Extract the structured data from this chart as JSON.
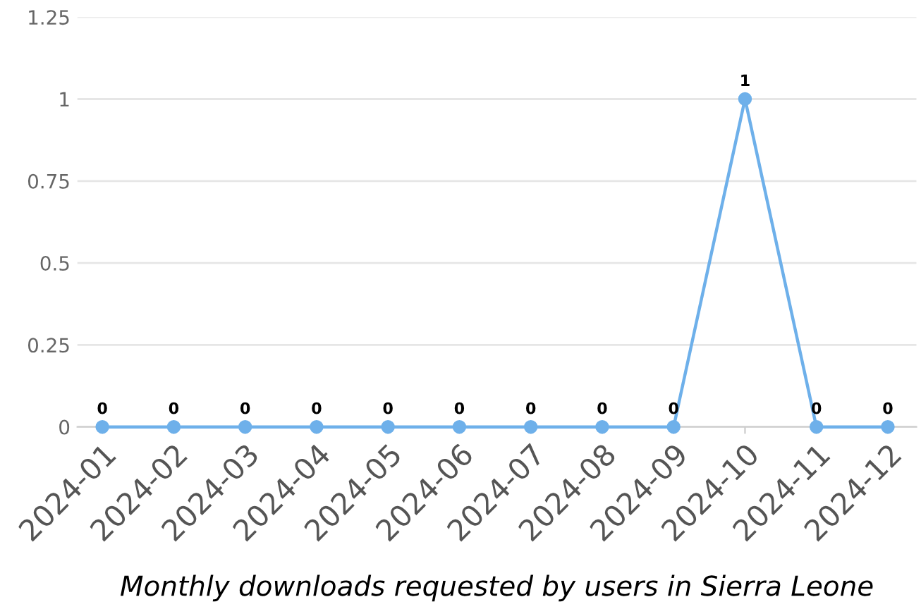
{
  "chart_data": {
    "type": "line",
    "xlabel": "Monthly downloads requested by users in Sierra Leone",
    "categories": [
      "2024-01",
      "2024-02",
      "2024-03",
      "2024-04",
      "2024-05",
      "2024-06",
      "2024-07",
      "2024-08",
      "2024-09",
      "2024-10",
      "2024-11",
      "2024-12"
    ],
    "series": [
      {
        "color": "#6eb0ea",
        "values": [
          0,
          0,
          0,
          0,
          0,
          0,
          0,
          0,
          0,
          1,
          0,
          0
        ]
      }
    ],
    "ylim": [
      0,
      1.25
    ],
    "yticks": [
      0,
      0.25,
      0.5,
      0.75,
      1,
      1.25
    ],
    "grid": "y",
    "marker": "circle",
    "line_style": "solid",
    "data_labels": true,
    "legend": false
  }
}
